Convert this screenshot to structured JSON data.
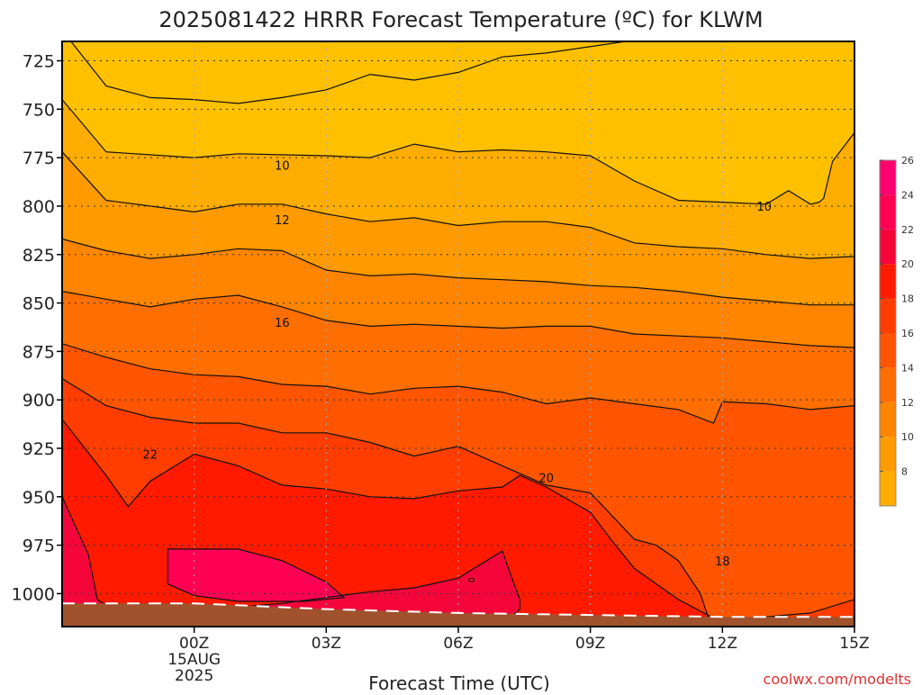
{
  "title": "2025081422 HRRR Forecast Temperature (ºC) for KLWM",
  "watermark": "coolwx.com/modelts",
  "chart_data": {
    "type": "contour",
    "title": "2025081422 HRRR Forecast Temperature (ºC) for KLWM",
    "xlabel": "Forecast Time (UTC)",
    "ylabel": "",
    "x_ticks": [
      {
        "hour": 2,
        "label": "00Z",
        "sub": [
          "15AUG",
          "2025"
        ]
      },
      {
        "hour": 5,
        "label": "03Z",
        "sub": []
      },
      {
        "hour": 8,
        "label": "06Z",
        "sub": []
      },
      {
        "hour": 11,
        "label": "09Z",
        "sub": []
      },
      {
        "hour": 14,
        "label": "12Z",
        "sub": []
      },
      {
        "hour": 17,
        "label": "15Z",
        "sub": []
      }
    ],
    "xlim": [
      -1.0,
      17.0
    ],
    "y_ticks": [
      725,
      750,
      775,
      800,
      825,
      850,
      875,
      900,
      925,
      950,
      975,
      1000
    ],
    "ylim": [
      1017,
      715
    ],
    "grid": true,
    "contour_interval": 2,
    "colorbar": {
      "levels": [
        6,
        8,
        10,
        12,
        14,
        16,
        18,
        20,
        22,
        24,
        26,
        28
      ],
      "labels": [
        "8",
        "10",
        "12",
        "14",
        "16",
        "18",
        "20",
        "22",
        "24",
        "26"
      ],
      "colors": [
        "#ffc000",
        "#ffad00",
        "#ff9a00",
        "#ff8400",
        "#ff6e00",
        "#ff5500",
        "#ff3d00",
        "#ff1a00",
        "#f5063a",
        "#ff0055",
        "#ff0070",
        "#ff1a99"
      ]
    },
    "contour_labels": [
      {
        "text": "10",
        "hour": 4.0,
        "hpa": 779
      },
      {
        "text": "10",
        "hour": 14.95,
        "hpa": 800
      },
      {
        "text": "12",
        "hour": 4.0,
        "hpa": 807
      },
      {
        "text": "16",
        "hour": 4.0,
        "hpa": 860
      },
      {
        "text": "20",
        "hour": 10.0,
        "hpa": 940
      },
      {
        "text": "22",
        "hour": 1.0,
        "hpa": 928
      },
      {
        "text": "18",
        "hour": 14.0,
        "hpa": 983
      }
    ],
    "contours": [
      {
        "level": 8,
        "hour": [
          -0.8,
          0,
          1,
          2,
          3,
          4,
          5,
          6,
          7,
          8,
          9,
          10,
          11.8
        ],
        "hpa": [
          715,
          738,
          744,
          745,
          747,
          744,
          740,
          732,
          735,
          731,
          723,
          721,
          715
        ],
        "fill": "#ffc000"
      },
      {
        "level": 10,
        "hour": [
          -1,
          0,
          2,
          3,
          5,
          6,
          7,
          8,
          9,
          10,
          11,
          12,
          13,
          14,
          15,
          15.5,
          16,
          16.2,
          16.3,
          16.5,
          17
        ],
        "hpa": [
          745,
          772,
          775,
          773,
          774,
          775,
          768,
          772,
          771,
          772,
          774,
          787,
          797,
          798,
          799,
          792,
          799,
          798,
          796,
          777,
          762
        ],
        "fill": "#ffad00"
      },
      {
        "level": 12,
        "hour": [
          -1,
          0,
          1,
          2,
          3,
          4,
          5,
          6,
          7,
          8,
          9,
          10,
          11,
          12,
          13,
          14,
          15,
          16,
          17
        ],
        "hpa": [
          772,
          797,
          800,
          803,
          799,
          799,
          804,
          808,
          806,
          810,
          808,
          808,
          811,
          819,
          821,
          822,
          825,
          827,
          826
        ],
        "fill": "#ff9a00"
      },
      {
        "level": 14,
        "hour": [
          -1,
          0,
          1,
          2,
          3,
          4,
          5,
          6,
          7,
          8,
          9,
          10,
          11,
          12,
          13,
          14,
          15,
          16,
          17
        ],
        "hpa": [
          817,
          823,
          827,
          825,
          822,
          823,
          833,
          836,
          835,
          837,
          838,
          839,
          841,
          842,
          844,
          847,
          849,
          851,
          851
        ],
        "fill": "#ff8400"
      },
      {
        "level": 16,
        "hour": [
          -1,
          0,
          1,
          2,
          3,
          4,
          5,
          6,
          7,
          8,
          9,
          10,
          11,
          12,
          13,
          14,
          15,
          16,
          17
        ],
        "hpa": [
          844,
          848,
          852,
          848,
          846,
          852,
          859,
          862,
          861,
          862,
          863,
          862,
          862,
          866,
          867,
          868,
          870,
          872,
          873
        ],
        "fill": "#ff6e00"
      },
      {
        "level": 18,
        "hour": [
          -1,
          0,
          1,
          2,
          3,
          4,
          5,
          6,
          7,
          8,
          9,
          10,
          11,
          12,
          13,
          13.8,
          14,
          15,
          16,
          17
        ],
        "hpa": [
          871,
          878,
          884,
          887,
          888,
          892,
          893,
          897,
          894,
          893,
          896,
          902,
          899,
          902,
          905,
          912,
          901,
          902,
          905,
          903
        ],
        "fill": "#ff5500"
      },
      {
        "level": 20,
        "hour": [
          -1,
          0,
          1,
          2,
          3,
          4,
          5,
          6,
          7,
          8,
          9,
          10,
          11,
          12,
          12.5,
          13,
          13.5,
          13.7,
          14,
          15,
          16,
          17
        ],
        "hpa": [
          889,
          903,
          909,
          912,
          912,
          917,
          917,
          922,
          929,
          924,
          934,
          944,
          948,
          972,
          975,
          983,
          1000,
          1014,
          1016,
          1012,
          1010,
          1003
        ],
        "fill": "#ff3d00"
      },
      {
        "level": 22,
        "hour": [
          -1,
          0,
          0.5,
          1,
          2,
          3,
          4,
          5,
          6,
          7,
          8,
          9,
          9.4,
          10,
          11,
          11.5,
          12,
          13,
          14,
          15,
          16,
          17
        ],
        "hpa": [
          910,
          939,
          955,
          942,
          928,
          934,
          944,
          946,
          950,
          951,
          947,
          945,
          939,
          945,
          958,
          973,
          987,
          1003,
          1015,
          1014,
          1015,
          1017
        ],
        "fill": "#ff1a00"
      },
      {
        "level": 24,
        "hour": [
          -1,
          -0.4,
          -0.2,
          0,
          1,
          2,
          3,
          4,
          5,
          6,
          7,
          8,
          9,
          9.2,
          9.4,
          9.4,
          9.2,
          9,
          8,
          7,
          6,
          5,
          4,
          3,
          2,
          1,
          0,
          -0.2,
          -1
        ],
        "hpa": [
          950,
          980,
          1003,
          1006,
          1006,
          1006,
          1007,
          1005,
          1002,
          999,
          997,
          992,
          978,
          991,
          1003,
          1008,
          1012,
          1013,
          1014,
          1014,
          1014,
          1014,
          1014,
          1014,
          1014,
          1014,
          1014,
          1014,
          1014
        ],
        "fill": "#f5063a"
      },
      {
        "level": 26,
        "hour": [
          1.4,
          2,
          3,
          4,
          5,
          5.3,
          5.4,
          4.5,
          3,
          2,
          1.4
        ],
        "hpa": [
          977,
          977,
          977,
          983,
          994,
          1000,
          1002,
          1004,
          1004,
          1001,
          995
        ],
        "fill": "#ff0055"
      }
    ],
    "ground": {
      "hour": [
        -1,
        2,
        5,
        8,
        11,
        14,
        17
      ],
      "hpa": [
        1005,
        1005,
        1008,
        1010,
        1011,
        1012,
        1012
      ]
    }
  }
}
